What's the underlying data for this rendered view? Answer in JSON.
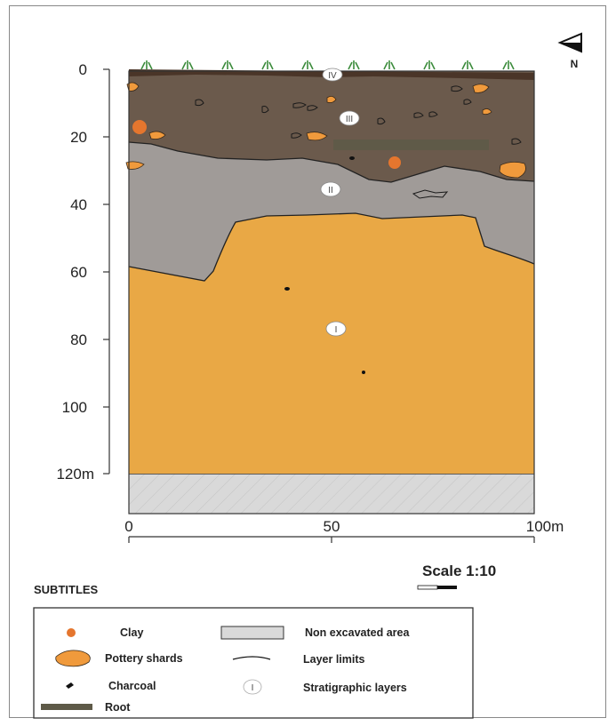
{
  "north": {
    "label": "N"
  },
  "depth_axis": {
    "ticks": [
      "0",
      "20",
      "40",
      "60",
      "80",
      "100",
      "120m"
    ]
  },
  "width_axis": {
    "ticks": [
      "0",
      "50",
      "100m"
    ]
  },
  "scale": {
    "label": "Scale 1:10"
  },
  "layers": [
    "I",
    "II",
    "III",
    "IV"
  ],
  "colors": {
    "layer_i": "#E9A845",
    "layer_ii": "#A09B98",
    "layer_iii": "#6B5A4C",
    "layer_iv": "#4A3528",
    "clay": "#E5762E",
    "pottery": "#F09A3C",
    "root": "#5E5A48",
    "non_excavated": "#D9D9D9",
    "grass": "#3C8C3C"
  },
  "legend": {
    "title": "SUBTITLES",
    "items": {
      "clay": "Clay",
      "pottery": "Pottery shards",
      "charcoal": "Charcoal",
      "root": "Root",
      "non_excavated": "Non excavated area",
      "layer_limits": "Layer limits",
      "strat_layers": "Stratigraphic layers",
      "strat_symbol": "I"
    }
  }
}
